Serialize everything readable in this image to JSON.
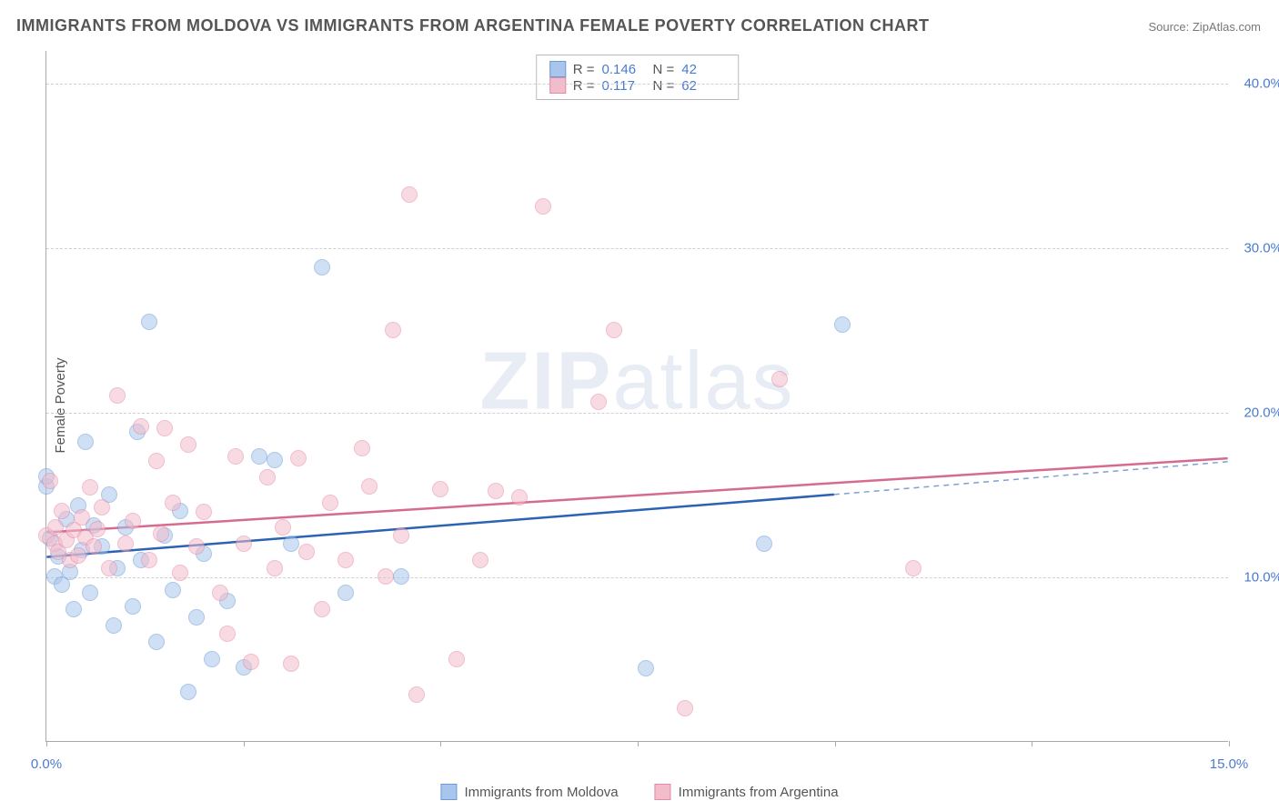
{
  "title": "IMMIGRANTS FROM MOLDOVA VS IMMIGRANTS FROM ARGENTINA FEMALE POVERTY CORRELATION CHART",
  "source": "Source: ZipAtlas.com",
  "y_axis_label": "Female Poverty",
  "watermark_bold": "ZIP",
  "watermark_rest": "atlas",
  "chart": {
    "type": "scatter-correlation",
    "xlim": [
      0,
      15
    ],
    "ylim": [
      0,
      42
    ],
    "x_ticks_at": [
      0,
      2.5,
      5,
      7.5,
      10,
      12.5,
      15
    ],
    "x_tick_labels": {
      "0": "0.0%",
      "15": "15.0%"
    },
    "y_grid_at": [
      10,
      20,
      30,
      40
    ],
    "y_tick_labels": {
      "10": "10.0%",
      "20": "20.0%",
      "30": "30.0%",
      "40": "40.0%"
    },
    "background_color": "#ffffff",
    "grid_color": "#d0d0d0",
    "axis_color": "#aaaaaa",
    "tick_label_color": "#4a7bd0",
    "point_radius": 9,
    "point_opacity": 0.55,
    "series": [
      {
        "name": "Immigrants from Moldova",
        "key": "moldova",
        "fill": "#a8c5ec",
        "stroke": "#6b9bd8",
        "line_color": "#2b62b5",
        "R": "0.146",
        "N": "42",
        "trend": {
          "x1": 0,
          "y1": 11.2,
          "x2": 10,
          "y2": 15.0,
          "dash_from_x": 10,
          "dash_to_x": 15,
          "dash_y2": 17.0
        },
        "points": [
          [
            0.05,
            12.3
          ],
          [
            0.0,
            15.5
          ],
          [
            0.0,
            16.1
          ],
          [
            0.1,
            10.0
          ],
          [
            0.15,
            11.2
          ],
          [
            0.2,
            9.5
          ],
          [
            0.25,
            13.5
          ],
          [
            0.3,
            10.3
          ],
          [
            0.35,
            8.0
          ],
          [
            0.4,
            14.3
          ],
          [
            0.45,
            11.6
          ],
          [
            0.5,
            18.2
          ],
          [
            0.55,
            9.0
          ],
          [
            0.6,
            13.1
          ],
          [
            0.7,
            11.8
          ],
          [
            0.8,
            15.0
          ],
          [
            0.85,
            7.0
          ],
          [
            0.9,
            10.5
          ],
          [
            1.0,
            13.0
          ],
          [
            1.1,
            8.2
          ],
          [
            1.15,
            18.8
          ],
          [
            1.2,
            11.0
          ],
          [
            1.3,
            25.5
          ],
          [
            1.4,
            6.0
          ],
          [
            1.5,
            12.5
          ],
          [
            1.6,
            9.2
          ],
          [
            1.7,
            14.0
          ],
          [
            1.8,
            3.0
          ],
          [
            1.9,
            7.5
          ],
          [
            2.0,
            11.4
          ],
          [
            2.1,
            5.0
          ],
          [
            2.3,
            8.5
          ],
          [
            2.5,
            4.5
          ],
          [
            2.7,
            17.3
          ],
          [
            2.9,
            17.1
          ],
          [
            3.1,
            12.0
          ],
          [
            3.5,
            28.8
          ],
          [
            3.8,
            9.0
          ],
          [
            4.5,
            10.0
          ],
          [
            7.6,
            4.4
          ],
          [
            9.1,
            12.0
          ],
          [
            10.1,
            25.3
          ]
        ]
      },
      {
        "name": "Immigrants from Argentina",
        "key": "argentina",
        "fill": "#f3bccb",
        "stroke": "#e48aa5",
        "line_color": "#d76b8f",
        "R": "0.117",
        "N": "62",
        "trend": {
          "x1": 0,
          "y1": 12.7,
          "x2": 15,
          "y2": 17.2
        },
        "points": [
          [
            0.0,
            12.5
          ],
          [
            0.05,
            15.8
          ],
          [
            0.1,
            12.0
          ],
          [
            0.12,
            13.0
          ],
          [
            0.15,
            11.5
          ],
          [
            0.2,
            14.0
          ],
          [
            0.25,
            12.2
          ],
          [
            0.3,
            11.0
          ],
          [
            0.35,
            12.8
          ],
          [
            0.4,
            11.3
          ],
          [
            0.45,
            13.6
          ],
          [
            0.5,
            12.4
          ],
          [
            0.55,
            15.4
          ],
          [
            0.6,
            11.8
          ],
          [
            0.65,
            12.9
          ],
          [
            0.7,
            14.2
          ],
          [
            0.8,
            10.5
          ],
          [
            0.9,
            21.0
          ],
          [
            1.0,
            12.0
          ],
          [
            1.1,
            13.4
          ],
          [
            1.2,
            19.1
          ],
          [
            1.3,
            11.0
          ],
          [
            1.4,
            17.0
          ],
          [
            1.45,
            12.6
          ],
          [
            1.5,
            19.0
          ],
          [
            1.6,
            14.5
          ],
          [
            1.7,
            10.2
          ],
          [
            1.8,
            18.0
          ],
          [
            1.9,
            11.8
          ],
          [
            2.0,
            13.9
          ],
          [
            2.2,
            9.0
          ],
          [
            2.3,
            6.5
          ],
          [
            2.4,
            17.3
          ],
          [
            2.5,
            12.0
          ],
          [
            2.6,
            4.8
          ],
          [
            2.8,
            16.0
          ],
          [
            2.9,
            10.5
          ],
          [
            3.0,
            13.0
          ],
          [
            3.1,
            4.7
          ],
          [
            3.2,
            17.2
          ],
          [
            3.3,
            11.5
          ],
          [
            3.5,
            8.0
          ],
          [
            3.6,
            14.5
          ],
          [
            3.8,
            11.0
          ],
          [
            4.0,
            17.8
          ],
          [
            4.1,
            15.5
          ],
          [
            4.3,
            10.0
          ],
          [
            4.4,
            25.0
          ],
          [
            4.5,
            12.5
          ],
          [
            4.6,
            33.2
          ],
          [
            4.7,
            2.8
          ],
          [
            5.0,
            15.3
          ],
          [
            5.2,
            5.0
          ],
          [
            5.5,
            11.0
          ],
          [
            5.7,
            15.2
          ],
          [
            6.0,
            14.8
          ],
          [
            6.3,
            32.5
          ],
          [
            7.0,
            20.6
          ],
          [
            7.2,
            25.0
          ],
          [
            8.1,
            2.0
          ],
          [
            9.3,
            22.0
          ],
          [
            11.0,
            10.5
          ]
        ]
      }
    ]
  },
  "bottom_legend": [
    {
      "key": "moldova",
      "label": "Immigrants from Moldova"
    },
    {
      "key": "argentina",
      "label": "Immigrants from Argentina"
    }
  ]
}
